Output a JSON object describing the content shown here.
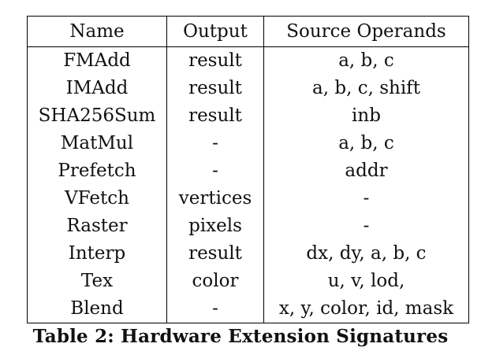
{
  "table": {
    "headers": [
      "Name",
      "Output",
      "Source Operands"
    ],
    "rows": [
      [
        "FMAdd",
        "result",
        "a, b, c"
      ],
      [
        "IMAdd",
        "result",
        "a, b, c, shift"
      ],
      [
        "SHA256Sum",
        "result",
        "inb"
      ],
      [
        "MatMul",
        "-",
        "a, b, c"
      ],
      [
        "Prefetch",
        "-",
        "addr"
      ],
      [
        "VFetch",
        "vertices",
        "-"
      ],
      [
        "Raster",
        "pixels",
        "-"
      ],
      [
        "Interp",
        "result",
        "dx, dy, a, b, c"
      ],
      [
        "Tex",
        "color",
        "u, v, lod,"
      ],
      [
        "Blend",
        "-",
        "x, y, color, id, mask"
      ]
    ]
  },
  "caption": "Table 2: Hardware Extension Signatures"
}
